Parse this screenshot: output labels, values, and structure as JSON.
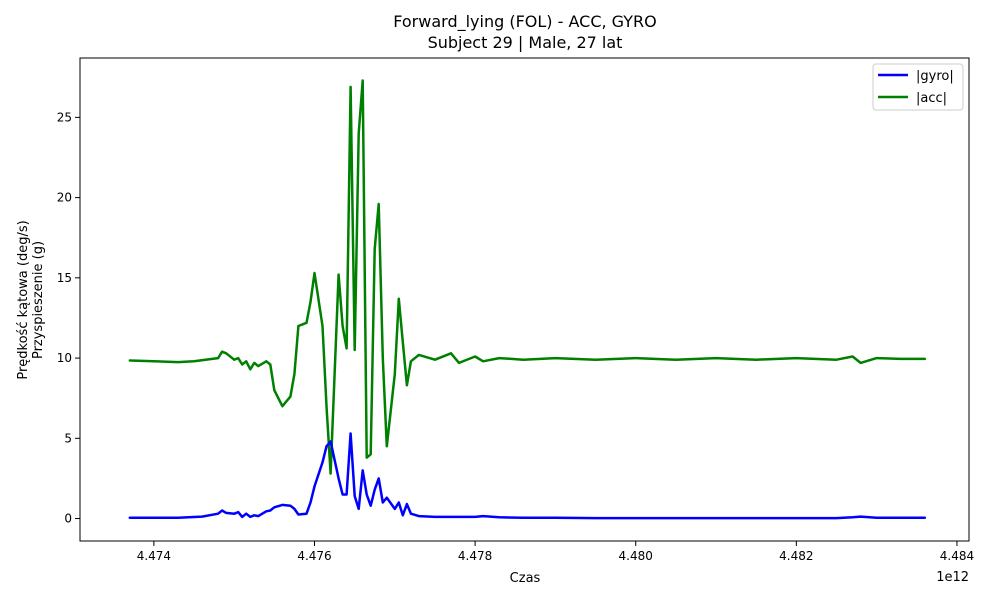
{
  "chart_data": {
    "type": "line",
    "title": "Forward_lying (FOL) - ACC, GYRO",
    "subtitle": "Subject 29 | Male, 27 lat",
    "xlabel": "Czas",
    "ylabel": "Prędkość kątowa (deg/s)",
    "ylabel2": "Przyspieszenie (g)",
    "x_offset_label": "1e12",
    "xlim": [
      4.47308,
      4.48415
    ],
    "ylim": [
      -1.4,
      28.7
    ],
    "xticks": [
      4.474,
      4.476,
      4.478,
      4.48,
      4.482,
      4.484
    ],
    "xtick_labels": [
      "4.474",
      "4.476",
      "4.478",
      "4.480",
      "4.482",
      "4.484"
    ],
    "yticks": [
      0,
      5,
      10,
      15,
      20,
      25
    ],
    "ytick_labels": [
      "0",
      "5",
      "10",
      "15",
      "20",
      "25"
    ],
    "grid": false,
    "legend_position": "top-right",
    "series": [
      {
        "name": "|gyro|",
        "color": "#0000ff",
        "x": [
          4.4737,
          4.474,
          4.4743,
          4.4746,
          4.4748,
          4.47485,
          4.4749,
          4.475,
          4.47505,
          4.4751,
          4.47515,
          4.4752,
          4.47525,
          4.4753,
          4.4754,
          4.47545,
          4.4755,
          4.4756,
          4.4757,
          4.47575,
          4.4758,
          4.4759,
          4.47595,
          4.476,
          4.4761,
          4.47615,
          4.4762,
          4.4763,
          4.47635,
          4.4764,
          4.47645,
          4.4765,
          4.47655,
          4.4766,
          4.47665,
          4.4767,
          4.47675,
          4.4768,
          4.47685,
          4.4769,
          4.477,
          4.47705,
          4.4771,
          4.47715,
          4.4772,
          4.4773,
          4.4775,
          4.4777,
          4.478,
          4.4781,
          4.4783,
          4.4786,
          4.479,
          4.4795,
          4.48,
          4.4805,
          4.481,
          4.4815,
          4.482,
          4.4825,
          4.4827,
          4.4828,
          4.483,
          4.4833,
          4.4836
        ],
        "values": [
          0.05,
          0.05,
          0.05,
          0.12,
          0.3,
          0.5,
          0.35,
          0.3,
          0.4,
          0.1,
          0.3,
          0.1,
          0.2,
          0.15,
          0.45,
          0.5,
          0.7,
          0.85,
          0.8,
          0.6,
          0.25,
          0.3,
          1.0,
          2.0,
          3.5,
          4.5,
          4.8,
          2.5,
          1.5,
          1.5,
          5.3,
          1.4,
          0.6,
          3.0,
          1.5,
          0.8,
          1.8,
          2.5,
          1.0,
          1.3,
          0.6,
          1.0,
          0.2,
          0.9,
          0.3,
          0.15,
          0.1,
          0.1,
          0.1,
          0.15,
          0.08,
          0.05,
          0.05,
          0.03,
          0.03,
          0.03,
          0.03,
          0.03,
          0.03,
          0.03,
          0.08,
          0.12,
          0.05,
          0.05,
          0.05
        ]
      },
      {
        "name": "|acc|",
        "color": "#008000",
        "x": [
          4.4737,
          4.474,
          4.4743,
          4.4745,
          4.4748,
          4.47485,
          4.4749,
          4.475,
          4.47505,
          4.4751,
          4.47515,
          4.4752,
          4.47525,
          4.4753,
          4.4754,
          4.47545,
          4.4755,
          4.4756,
          4.4757,
          4.47575,
          4.4758,
          4.4759,
          4.47595,
          4.476,
          4.4761,
          4.47615,
          4.4762,
          4.4763,
          4.47635,
          4.4764,
          4.47645,
          4.4765,
          4.47655,
          4.4766,
          4.47665,
          4.4767,
          4.47675,
          4.4768,
          4.47685,
          4.4769,
          4.477,
          4.47705,
          4.4771,
          4.47715,
          4.4772,
          4.4773,
          4.4775,
          4.4777,
          4.4778,
          4.478,
          4.4781,
          4.4783,
          4.4786,
          4.479,
          4.4795,
          4.48,
          4.4805,
          4.481,
          4.4815,
          4.482,
          4.4825,
          4.4827,
          4.4828,
          4.483,
          4.4833,
          4.4836
        ],
        "values": [
          9.85,
          9.8,
          9.75,
          9.8,
          10.0,
          10.4,
          10.3,
          9.9,
          10.0,
          9.6,
          9.8,
          9.3,
          9.7,
          9.5,
          9.8,
          9.6,
          8.0,
          7.0,
          7.6,
          9.0,
          12.0,
          12.2,
          13.5,
          15.3,
          12.0,
          7.0,
          2.8,
          15.2,
          12.0,
          10.6,
          26.9,
          10.5,
          24.0,
          27.3,
          3.8,
          4.0,
          16.8,
          19.6,
          10.0,
          4.5,
          9.0,
          13.7,
          11.0,
          8.3,
          9.8,
          10.2,
          9.9,
          10.3,
          9.7,
          10.1,
          9.8,
          10.0,
          9.9,
          10.0,
          9.9,
          10.0,
          9.9,
          10.0,
          9.9,
          10.0,
          9.9,
          10.1,
          9.7,
          10.0,
          9.95,
          9.95
        ]
      }
    ]
  }
}
